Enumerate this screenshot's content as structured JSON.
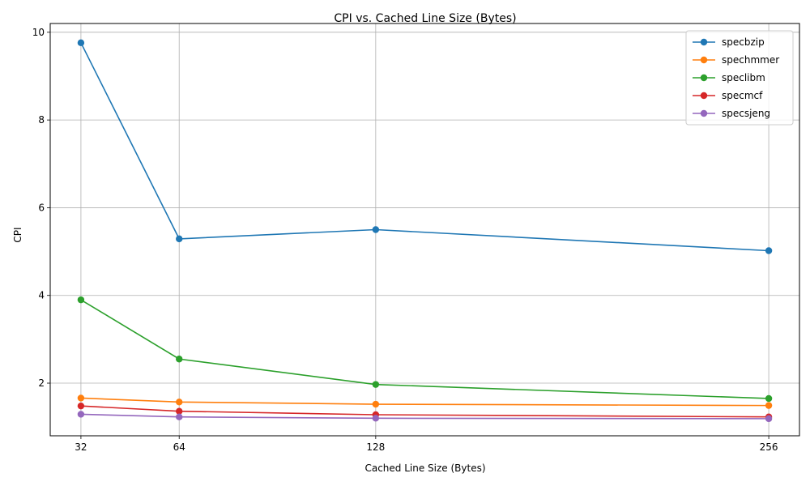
{
  "chart_data": {
    "type": "line",
    "title": "CPI vs. Cached Line Size (Bytes)",
    "xlabel": "Cached Line Size (Bytes)",
    "ylabel": "CPI",
    "x": [
      32,
      64,
      128,
      256
    ],
    "xlim": [
      22,
      266
    ],
    "ylim": [
      0.8,
      10.2
    ],
    "xticks": [
      32,
      64,
      128,
      256
    ],
    "yticks": [
      2,
      4,
      6,
      8,
      10
    ],
    "grid": true,
    "legend": "top-right",
    "series": [
      {
        "name": "specbzip",
        "color": "#1f77b4",
        "values": [
          9.76,
          5.29,
          5.5,
          5.02
        ]
      },
      {
        "name": "spechmmer",
        "color": "#ff7f0e",
        "values": [
          1.66,
          1.57,
          1.52,
          1.49
        ]
      },
      {
        "name": "speclibm",
        "color": "#2ca02c",
        "values": [
          3.9,
          2.55,
          1.97,
          1.65
        ]
      },
      {
        "name": "specmcf",
        "color": "#d62728",
        "values": [
          1.48,
          1.36,
          1.28,
          1.23
        ]
      },
      {
        "name": "specsjeng",
        "color": "#9467bd",
        "values": [
          1.29,
          1.23,
          1.2,
          1.19
        ]
      }
    ]
  }
}
